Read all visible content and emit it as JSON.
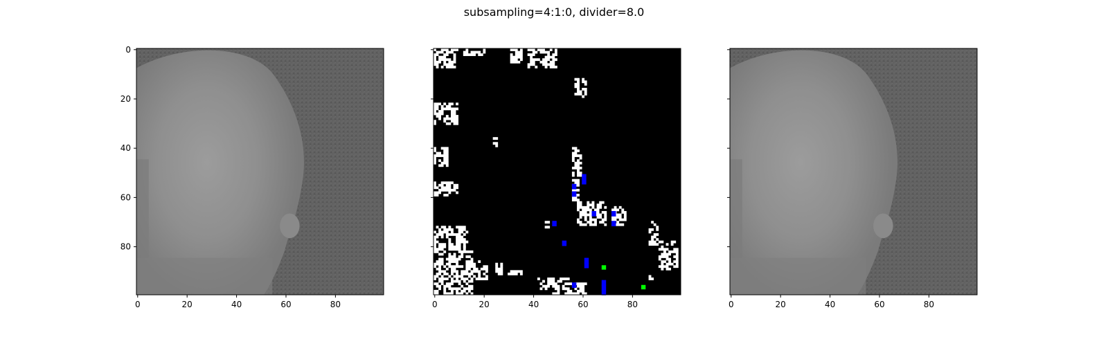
{
  "figure": {
    "title": "subsampling=4:1:0, divider=8.0"
  },
  "colors": {
    "frame": "#000000",
    "background": "#ffffff",
    "mask_on": "#ffffff",
    "mask_off": "#000000",
    "blue_marks": "#0000ff",
    "green_marks": "#00ff00"
  },
  "chart_data": [
    {
      "type": "image",
      "name": "",
      "xlim": [
        0,
        99
      ],
      "ylim": [
        99,
        0
      ],
      "xticks": [
        0,
        20,
        40,
        60,
        80
      ],
      "yticks": [
        0,
        20,
        40,
        60,
        80
      ],
      "xtick_labels": [
        "0",
        "20",
        "40",
        "60",
        "80"
      ],
      "ytick_labels": [
        "0",
        "20",
        "40",
        "60",
        "80"
      ],
      "show_ytick_labels": true,
      "content": "grayscale"
    },
    {
      "type": "image",
      "name": "",
      "xlim": [
        0,
        99
      ],
      "ylim": [
        99,
        0
      ],
      "xticks": [
        0,
        20,
        40,
        60,
        80
      ],
      "yticks": [
        0,
        20,
        40,
        60,
        80
      ],
      "xtick_labels": [
        "0",
        "20",
        "40",
        "60",
        "80"
      ],
      "ytick_labels": [],
      "show_ytick_labels": false,
      "content": "mask",
      "white_regions": [
        [
          0,
          0,
          10,
          8
        ],
        [
          12,
          0,
          22,
          3
        ],
        [
          31,
          0,
          36,
          6
        ],
        [
          38,
          0,
          50,
          8
        ],
        [
          0,
          22,
          10,
          31
        ],
        [
          0,
          40,
          6,
          48
        ],
        [
          0,
          54,
          10,
          60
        ],
        [
          0,
          72,
          14,
          82
        ],
        [
          0,
          80,
          16,
          100
        ],
        [
          14,
          86,
          22,
          94
        ],
        [
          25,
          86,
          28,
          92
        ],
        [
          30,
          90,
          36,
          92
        ],
        [
          42,
          93,
          55,
          98
        ],
        [
          48,
          95,
          62,
          100
        ],
        [
          57,
          12,
          62,
          20
        ],
        [
          56,
          40,
          60,
          52
        ],
        [
          56,
          53,
          59,
          62
        ],
        [
          58,
          62,
          64,
          72
        ],
        [
          64,
          62,
          70,
          72
        ],
        [
          72,
          64,
          78,
          72
        ],
        [
          87,
          70,
          91,
          80
        ],
        [
          91,
          78,
          99,
          90
        ],
        [
          45,
          70,
          47,
          73
        ],
        [
          22,
          25,
          24,
          27
        ],
        [
          24,
          36,
          26,
          40
        ],
        [
          87,
          92,
          90,
          94
        ]
      ],
      "blue_points": [
        [
          60,
          51
        ],
        [
          60,
          53
        ],
        [
          56,
          55
        ],
        [
          56,
          58
        ],
        [
          48,
          70
        ],
        [
          64,
          66
        ],
        [
          72,
          66
        ],
        [
          72,
          70
        ],
        [
          52,
          78
        ],
        [
          61,
          85
        ],
        [
          61,
          87
        ],
        [
          56,
          95
        ],
        [
          68,
          94
        ],
        [
          68,
          96
        ],
        [
          68,
          98
        ]
      ],
      "green_points": [
        [
          68,
          88
        ],
        [
          84,
          96
        ]
      ]
    },
    {
      "type": "image",
      "name": "",
      "xlim": [
        0,
        99
      ],
      "ylim": [
        99,
        0
      ],
      "xticks": [
        0,
        20,
        40,
        60,
        80
      ],
      "yticks": [
        0,
        20,
        40,
        60,
        80
      ],
      "xtick_labels": [
        "0",
        "20",
        "40",
        "60",
        "80"
      ],
      "ytick_labels": [],
      "show_ytick_labels": false,
      "content": "grayscale"
    }
  ]
}
